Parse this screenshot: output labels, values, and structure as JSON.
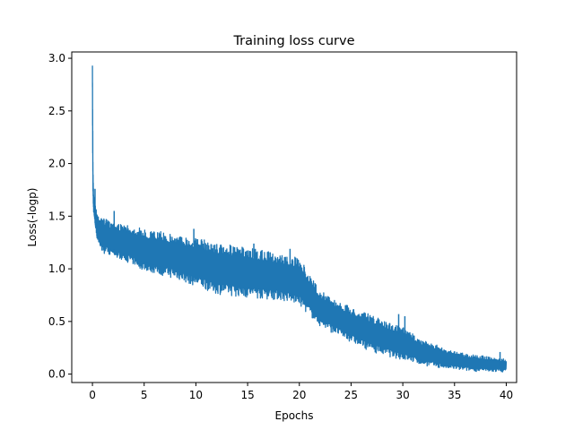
{
  "chart_data": {
    "type": "line",
    "title": "Training loss curve",
    "xlabel": "Epochs",
    "ylabel": "Loss(-logp)",
    "xlim": [
      -2,
      41
    ],
    "ylim": [
      -0.08,
      3.06
    ],
    "xticks": [
      0,
      5,
      10,
      15,
      20,
      25,
      30,
      35,
      40
    ],
    "yticks": [
      0.0,
      0.5,
      1.0,
      1.5,
      2.0,
      2.5,
      3.0
    ],
    "xtick_labels": [
      "0",
      "5",
      "10",
      "15",
      "20",
      "25",
      "30",
      "35",
      "40"
    ],
    "ytick_labels": [
      "0.0",
      "0.5",
      "1.0",
      "1.5",
      "2.0",
      "2.5",
      "3.0"
    ],
    "grid": false,
    "legend": "none",
    "series": [
      {
        "color": "#1f77b4",
        "band": {
          "x": [
            0,
            0.02,
            0.05,
            0.1,
            0.2,
            0.4,
            0.7,
            1,
            2,
            3,
            5,
            8,
            10,
            12,
            15,
            18,
            20,
            21,
            22,
            24,
            26,
            28,
            30,
            32,
            34,
            36,
            38,
            40
          ],
          "low": [
            2.8,
            2.1,
            1.7,
            1.55,
            1.45,
            1.3,
            1.2,
            1.15,
            1.12,
            1.08,
            0.98,
            0.9,
            0.83,
            0.76,
            0.72,
            0.7,
            0.65,
            0.55,
            0.45,
            0.35,
            0.25,
            0.18,
            0.13,
            0.08,
            0.05,
            0.03,
            0.02,
            0.02
          ],
          "high": [
            2.93,
            2.6,
            2.0,
            1.75,
            1.65,
            1.55,
            1.5,
            1.48,
            1.45,
            1.42,
            1.38,
            1.33,
            1.3,
            1.25,
            1.2,
            1.15,
            1.1,
            0.95,
            0.8,
            0.68,
            0.6,
            0.52,
            0.45,
            0.32,
            0.25,
            0.2,
            0.17,
            0.14
          ]
        },
        "spikes": [
          {
            "x": 0.25,
            "y": 1.76
          },
          {
            "x": 2.1,
            "y": 1.55
          },
          {
            "x": 9.8,
            "y": 1.38
          },
          {
            "x": 12.4,
            "y": 1.23
          },
          {
            "x": 15.6,
            "y": 1.24
          },
          {
            "x": 19.1,
            "y": 1.19
          },
          {
            "x": 21.6,
            "y": 0.85
          },
          {
            "x": 29.6,
            "y": 0.57
          },
          {
            "x": 30.2,
            "y": 0.55
          },
          {
            "x": 39.4,
            "y": 0.21
          }
        ]
      }
    ]
  }
}
